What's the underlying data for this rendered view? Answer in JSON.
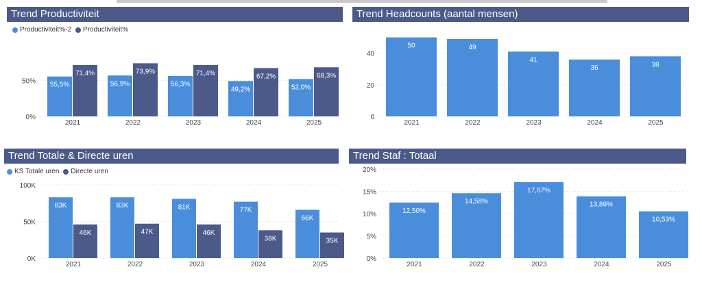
{
  "colors": {
    "light": "#4a8edb",
    "dark": "#4c5a8a",
    "header": "#4c5a8a",
    "grid": "#d6d6d6"
  },
  "panels": {
    "productiviteit": {
      "title": "Trend Productiviteit"
    },
    "headcounts": {
      "title": "Trend Headcounts (aantal mensen)"
    },
    "uren": {
      "title": "Trend Totale & Directe uren"
    },
    "staf": {
      "title": "Trend Staf : Totaal"
    }
  },
  "chart_data": [
    {
      "id": "productiviteit",
      "type": "bar",
      "title": "Trend Productiviteit",
      "categories": [
        "2021",
        "2022",
        "2023",
        "2024",
        "2025"
      ],
      "ylim": [
        0,
        100
      ],
      "yticks": [
        "0%",
        "50%"
      ],
      "ytick_values": [
        0,
        50
      ],
      "series": [
        {
          "name": "Productiviteit%-2",
          "values": [
            55.5,
            56.9,
            56.3,
            49.2,
            52.0
          ],
          "labels": [
            "55,5%",
            "56,9%",
            "56,3%",
            "49,2%",
            "52,0%"
          ]
        },
        {
          "name": "Productiviteit%",
          "values": [
            71.4,
            73.9,
            71.4,
            67.2,
            68.3
          ],
          "labels": [
            "71,4%",
            "73,9%",
            "71,4%",
            "67,2%",
            "68,3%"
          ]
        }
      ]
    },
    {
      "id": "headcounts",
      "type": "bar",
      "title": "Trend Headcounts (aantal mensen)",
      "categories": [
        "2021",
        "2022",
        "2023",
        "2024",
        "2025"
      ],
      "ylim": [
        0,
        52
      ],
      "yticks": [
        "0",
        "20",
        "40"
      ],
      "ytick_values": [
        0,
        20,
        40
      ],
      "series": [
        {
          "values": [
            50,
            49,
            41,
            36,
            38
          ],
          "labels": [
            "50",
            "49",
            "41",
            "36",
            "38"
          ]
        }
      ]
    },
    {
      "id": "uren",
      "type": "bar",
      "title": "Trend Totale & Directe uren",
      "categories": [
        "2021",
        "2022",
        "2023",
        "2024",
        "2025"
      ],
      "ylim": [
        0,
        100000
      ],
      "yticks": [
        "0K",
        "50K",
        "100K"
      ],
      "ytick_values": [
        0,
        50000,
        100000
      ],
      "series": [
        {
          "name": "KS Totale uren",
          "values": [
            83000,
            83000,
            81000,
            77000,
            66000
          ],
          "labels": [
            "83K",
            "83K",
            "81K",
            "77K",
            "66K"
          ]
        },
        {
          "name": "Directe uren",
          "values": [
            46000,
            47000,
            46000,
            38000,
            35000
          ],
          "labels": [
            "46K",
            "47K",
            "46K",
            "38K",
            "35K"
          ]
        }
      ]
    },
    {
      "id": "staf",
      "type": "bar",
      "title": "Trend Staf : Totaal",
      "categories": [
        "2021",
        "2022",
        "2023",
        "2024",
        "2025"
      ],
      "ylim": [
        0,
        20
      ],
      "yticks": [
        "0%",
        "5%",
        "10%",
        "15%",
        "20%"
      ],
      "ytick_values": [
        0,
        5,
        10,
        15,
        20
      ],
      "series": [
        {
          "values": [
            12.5,
            14.58,
            17.07,
            13.89,
            10.53
          ],
          "labels": [
            "12,50%",
            "14,58%",
            "17,07%",
            "13,89%",
            "10,53%"
          ]
        }
      ]
    }
  ]
}
